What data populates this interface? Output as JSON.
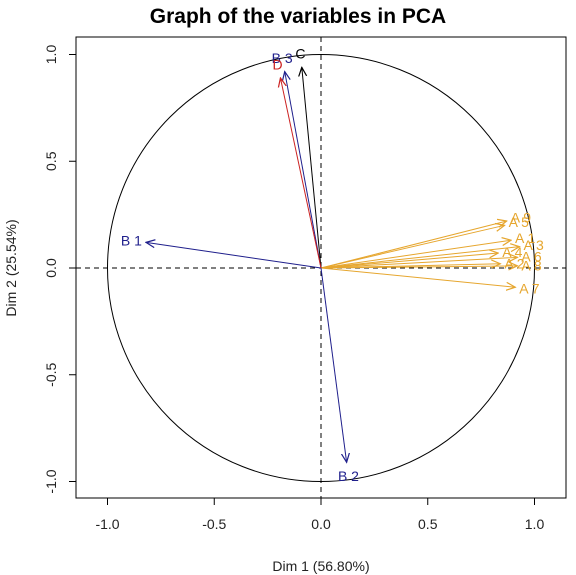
{
  "chart_data": {
    "type": "scatter",
    "title": "Graph of the variables in PCA",
    "xlabel": "Dim 1 (56.80%)",
    "ylabel": "Dim 2 (25.54%)",
    "xlim": [
      -1.1,
      1.1
    ],
    "ylim": [
      -1.1,
      1.1
    ],
    "xticks": [
      -1.0,
      -0.5,
      0.0,
      0.5,
      1.0
    ],
    "xtick_labels": [
      "-1.0",
      "-0.5",
      "0.0",
      "0.5",
      "1.0"
    ],
    "yticks": [
      -1.0,
      -0.5,
      0.0,
      0.5,
      1.0
    ],
    "ytick_labels": [
      "-1.0",
      "-0.5",
      "0.0",
      "0.5",
      "1.0"
    ],
    "grid": false,
    "reference_lines": [
      0,
      0
    ],
    "unit_circle": true,
    "colors": {
      "A": "#E6A62E",
      "B": "#1F1F8C",
      "C": "#000000",
      "D": "#CC2222"
    },
    "series": [
      {
        "label": "A 1",
        "x": 0.89,
        "y": 0.13,
        "group": "A"
      },
      {
        "label": "A 2",
        "x": 0.84,
        "y": 0.02,
        "group": "A"
      },
      {
        "label": "A 3",
        "x": 0.93,
        "y": 0.1,
        "group": "A"
      },
      {
        "label": "A 4",
        "x": 0.83,
        "y": 0.07,
        "group": "A"
      },
      {
        "label": "A 5",
        "x": 0.86,
        "y": 0.2,
        "group": "A"
      },
      {
        "label": "A 6",
        "x": 0.92,
        "y": 0.05,
        "group": "A"
      },
      {
        "label": "A 7",
        "x": 0.91,
        "y": -0.09,
        "group": "A"
      },
      {
        "label": "A 8",
        "x": 0.92,
        "y": 0.01,
        "group": "A"
      },
      {
        "label": "A 9",
        "x": 0.87,
        "y": 0.22,
        "group": "A"
      },
      {
        "label": "B 1",
        "x": -0.82,
        "y": 0.12,
        "group": "B"
      },
      {
        "label": "B 2",
        "x": 0.12,
        "y": -0.91,
        "group": "B"
      },
      {
        "label": "B 3",
        "x": -0.17,
        "y": 0.92,
        "group": "B"
      },
      {
        "label": "C",
        "x": -0.09,
        "y": 0.94,
        "group": "C"
      },
      {
        "label": "D",
        "x": -0.19,
        "y": 0.89,
        "group": "D"
      }
    ]
  }
}
